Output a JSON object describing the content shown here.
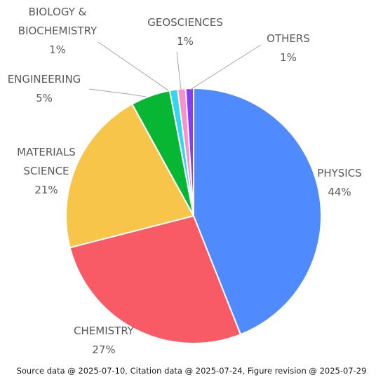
{
  "chart_data": {
    "type": "pie",
    "title": "",
    "slices": [
      {
        "label_lines": [
          "PHYSICS"
        ],
        "value": 44,
        "value_text": "44%",
        "color": "#4f8bff"
      },
      {
        "label_lines": [
          "CHEMISTRY"
        ],
        "value": 27,
        "value_text": "27%",
        "color": "#f85a66"
      },
      {
        "label_lines": [
          "MATERIALS",
          "SCIENCE"
        ],
        "value": 21,
        "value_text": "21%",
        "color": "#f8c54b"
      },
      {
        "label_lines": [
          "ENGINEERING"
        ],
        "value": 5,
        "value_text": "5%",
        "color": "#07b733"
      },
      {
        "label_lines": [
          "BIOLOGY &",
          "BIOCHEMISTRY"
        ],
        "value": 1,
        "value_text": "1%",
        "color": "#33d6f0"
      },
      {
        "label_lines": [
          "GEOSCIENCES"
        ],
        "value": 1,
        "value_text": "1%",
        "color": "#f990c9"
      },
      {
        "label_lines": [
          "OTHERS"
        ],
        "value": 1,
        "value_text": "1%",
        "color": "#8a3cf2"
      }
    ]
  },
  "footer": {
    "text": "Source data @  2025-07-10, Citation data @ 2025-07-24, Figure revision @ 2025-07-29"
  }
}
